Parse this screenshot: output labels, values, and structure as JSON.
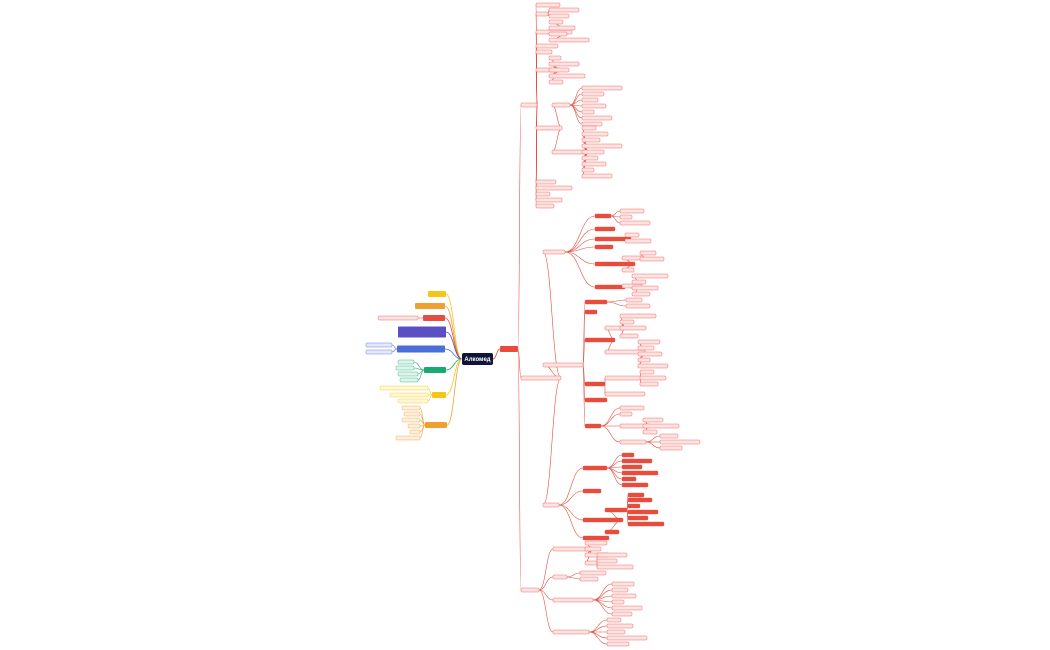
{
  "central": {
    "label": "Алкомед"
  }
}
